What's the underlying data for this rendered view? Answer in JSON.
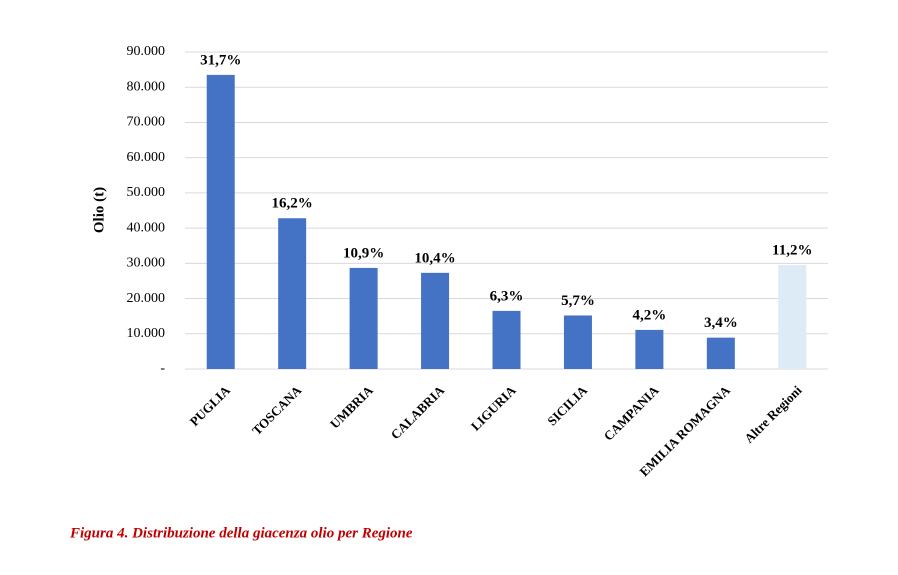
{
  "chart_data": {
    "type": "bar",
    "y_label": "Olio (t)",
    "caption": "Figura 4. Distribuzione della giacenza olio per Regione",
    "categories": [
      "PUGLIA",
      "TOSCANA",
      "UMBRIA",
      "CALABRIA",
      "LIGURIA",
      "SICILIA",
      "CAMPANIA",
      "EMILIA ROMAGNA",
      "Altre Regioni"
    ],
    "values": [
      83500,
      42800,
      28700,
      27300,
      16500,
      15200,
      11100,
      8900,
      29500
    ],
    "colors": [
      "#4472c4",
      "#4472c4",
      "#4472c4",
      "#4472c4",
      "#4472c4",
      "#4472c4",
      "#4472c4",
      "#4472c4",
      "#ddebf7"
    ],
    "shares": [
      {
        "value": 31.7,
        "label": "31,7%"
      },
      {
        "value": 16.2,
        "label": "16,2%"
      },
      {
        "value": 10.9,
        "label": "10,9%"
      },
      {
        "value": 10.4,
        "label": "10,4%"
      },
      {
        "value": 6.3,
        "label": "6,3%"
      },
      {
        "value": 5.7,
        "label": "5,7%"
      },
      {
        "value": 4.2,
        "label": "4,2%"
      },
      {
        "value": 3.4,
        "label": "3,4%"
      },
      {
        "value": 11.2,
        "label": "11,2%"
      }
    ],
    "ylim": [
      0,
      90000
    ],
    "yticks": [
      {
        "value": 0,
        "label": "-"
      },
      {
        "value": 10000,
        "label": "10.000"
      },
      {
        "value": 20000,
        "label": "20.000"
      },
      {
        "value": 30000,
        "label": "30.000"
      },
      {
        "value": 40000,
        "label": "40.000"
      },
      {
        "value": 50000,
        "label": "50.000"
      },
      {
        "value": 60000,
        "label": "60.000"
      },
      {
        "value": 70000,
        "label": "70.000"
      },
      {
        "value": 80000,
        "label": "80.000"
      },
      {
        "value": 90000,
        "label": "90.000"
      }
    ],
    "grid": true
  }
}
